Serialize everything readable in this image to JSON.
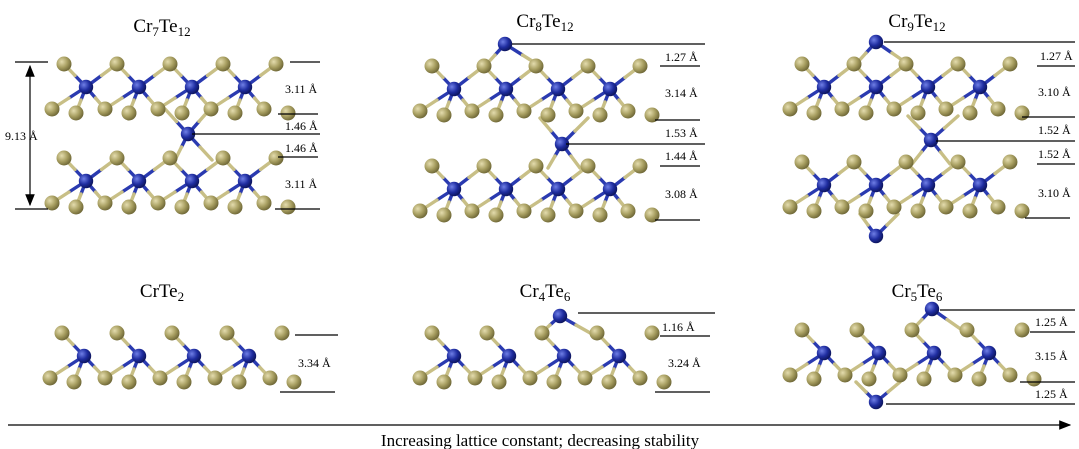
{
  "panels": [
    {
      "id": "cr7te12",
      "formula": [
        {
          "t": "Cr"
        },
        {
          "t": "7",
          "sub": true
        },
        {
          "t": "Te"
        },
        {
          "t": "12",
          "sub": true
        }
      ],
      "labels": [
        "9.13 Å",
        "3.11 Å",
        "1.46 Å",
        "1.46 Å",
        "3.11 Å"
      ]
    },
    {
      "id": "cr8te12",
      "formula": [
        {
          "t": "Cr"
        },
        {
          "t": "8",
          "sub": true
        },
        {
          "t": "Te"
        },
        {
          "t": "12",
          "sub": true
        }
      ],
      "labels": [
        "1.27 Å",
        "3.14 Å",
        "1.53 Å",
        "1.44 Å",
        "3.08 Å"
      ]
    },
    {
      "id": "cr9te12",
      "formula": [
        {
          "t": "Cr"
        },
        {
          "t": "9",
          "sub": true
        },
        {
          "t": "Te"
        },
        {
          "t": "12",
          "sub": true
        }
      ],
      "labels": [
        "1.27 Å",
        "3.10 Å",
        "1.52 Å",
        "1.52 Å",
        "3.10 Å"
      ]
    },
    {
      "id": "crte2",
      "formula": [
        {
          "t": "CrTe"
        },
        {
          "t": "2",
          "sub": true
        }
      ],
      "labels": [
        "3.34 Å"
      ]
    },
    {
      "id": "cr4te6",
      "formula": [
        {
          "t": "Cr"
        },
        {
          "t": "4",
          "sub": true
        },
        {
          "t": "Te"
        },
        {
          "t": "6",
          "sub": true
        }
      ],
      "labels": [
        "1.16 Å",
        "3.24 Å"
      ]
    },
    {
      "id": "cr5te6",
      "formula": [
        {
          "t": "Cr"
        },
        {
          "t": "5",
          "sub": true
        },
        {
          "t": "Te"
        },
        {
          "t": "6",
          "sub": true
        }
      ],
      "labels": [
        "1.25 Å",
        "3.15 Å",
        "1.25 Å"
      ]
    }
  ],
  "caption": "Increasing lattice constant; decreasing stability",
  "colors": {
    "cr": "#1c2a9a",
    "te": "#a39a5c",
    "te_edge": "#6f6838",
    "cr_edge": "#0d1660",
    "bond_te": "#c8bf86",
    "bond_cr": "#2a3ab0",
    "line": "#000000"
  }
}
